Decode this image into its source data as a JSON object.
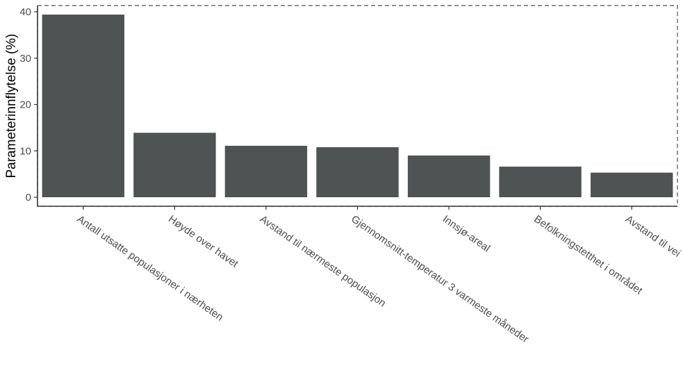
{
  "chart_data": {
    "type": "bar",
    "categories": [
      "Antall utsatte populasjoner i nærheten",
      "Høyde over havet",
      "Avstand til nærmeste populasjon",
      "Gjennomsnitt-temperatur 3 varmeste måneder",
      "Innsjø-areal",
      "Befolkningstetthet i området",
      "Avstand til vei"
    ],
    "values": [
      39.4,
      13.9,
      11.1,
      10.8,
      9.0,
      6.6,
      5.3
    ],
    "title": "",
    "xlabel": "",
    "ylabel": "Parameterinnflytelse (%)",
    "ylim": [
      0,
      40
    ],
    "yticks": [
      0,
      10,
      20,
      30,
      40
    ],
    "grid": false,
    "colors": {
      "bar": "#505353",
      "panel_border": "#4d4d4d",
      "axis_line": "#333333",
      "tick_text": "#4d4d4d"
    }
  }
}
